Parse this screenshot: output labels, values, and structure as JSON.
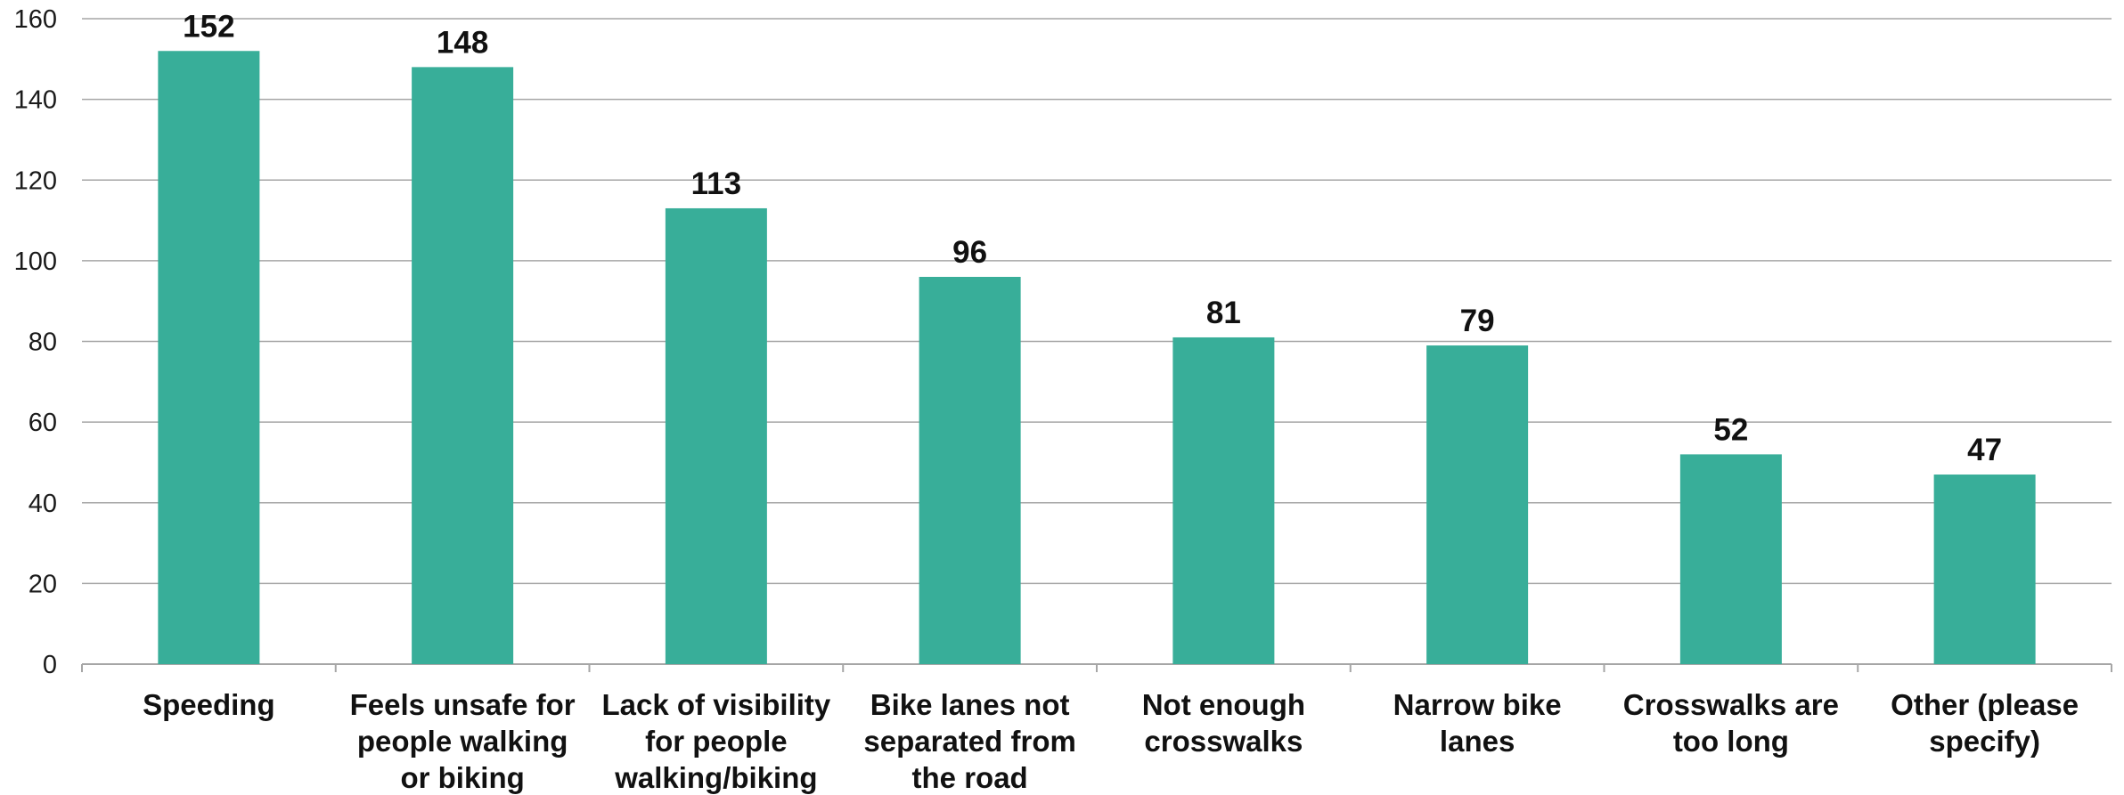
{
  "chart_data": {
    "type": "bar",
    "categories": [
      [
        "Speeding"
      ],
      [
        "Feels unsafe for",
        "people walking",
        "or biking"
      ],
      [
        "Lack of visibility",
        "for people",
        "walking/biking"
      ],
      [
        "Bike lanes not",
        "separated from",
        "the road"
      ],
      [
        "Not enough",
        "crosswalks"
      ],
      [
        "Narrow bike",
        "lanes"
      ],
      [
        "Crosswalks are",
        "too long"
      ],
      [
        "Other (please",
        "specify)"
      ]
    ],
    "values": [
      152,
      148,
      113,
      96,
      81,
      79,
      52,
      47
    ],
    "ylim": [
      0,
      160
    ],
    "yticks": [
      0,
      20,
      40,
      60,
      80,
      100,
      120,
      140,
      160
    ],
    "grid": true,
    "title": "",
    "xlabel": "",
    "ylabel": "",
    "colors": {
      "bar": "#38ae99",
      "grid": "#a6a6a6",
      "axis": "#a6a6a6",
      "text": "#111111"
    }
  }
}
